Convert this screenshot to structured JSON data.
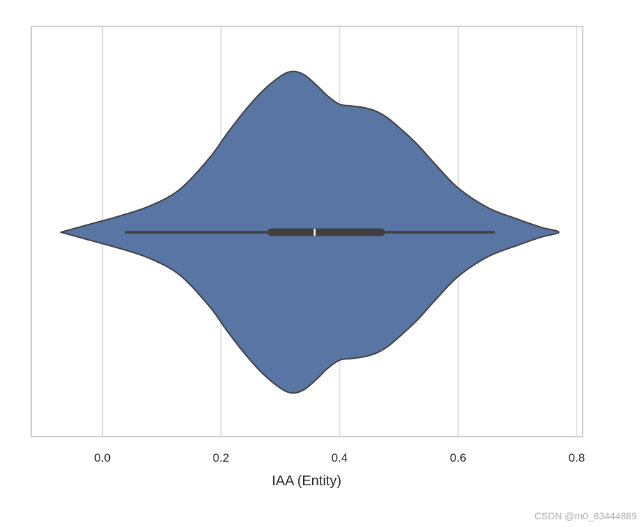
{
  "chart_data": {
    "type": "violin",
    "orientation": "horizontal",
    "title": "",
    "xlabel": "IAA (Entity)",
    "ylabel": "",
    "xlim": [
      -0.12,
      0.81
    ],
    "xticks": [
      0.0,
      0.2,
      0.4,
      0.6,
      0.8
    ],
    "xtick_labels": [
      "0.0",
      "0.2",
      "0.4",
      "0.6",
      "0.8"
    ],
    "grid": "vertical",
    "fill_color": "#5975a4",
    "edge_color": "#3f3f3f",
    "box_color": "#3f3f3f",
    "median_color": "#ffffff",
    "density": {
      "x": [
        -0.07,
        -0.02,
        0.03,
        0.08,
        0.13,
        0.18,
        0.21,
        0.24,
        0.27,
        0.3,
        0.32,
        0.34,
        0.36,
        0.38,
        0.4,
        0.42,
        0.44,
        0.46,
        0.48,
        0.5,
        0.53,
        0.56,
        0.6,
        0.65,
        0.7,
        0.74,
        0.77
      ],
      "y": [
        0.0,
        0.05,
        0.1,
        0.16,
        0.26,
        0.45,
        0.6,
        0.74,
        0.86,
        0.95,
        0.98,
        0.96,
        0.9,
        0.83,
        0.78,
        0.77,
        0.76,
        0.74,
        0.7,
        0.64,
        0.54,
        0.42,
        0.27,
        0.15,
        0.08,
        0.03,
        0.0
      ]
    },
    "box": {
      "whisker_low": 0.04,
      "q1": 0.285,
      "median": 0.358,
      "q3": 0.47,
      "whisker_high": 0.66
    }
  },
  "watermark": "CSDN @m0_63444889"
}
